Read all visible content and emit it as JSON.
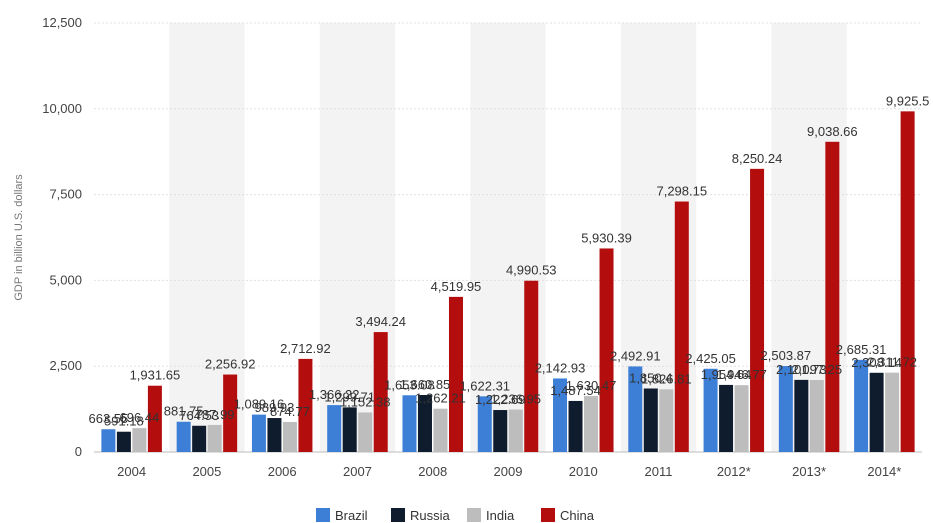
{
  "chart_data": {
    "type": "bar",
    "ylabel": "GDP in billion U.S. dollars",
    "ylim": [
      0,
      12500
    ],
    "yticks": [
      0,
      2500,
      5000,
      7500,
      10000,
      12500
    ],
    "ytick_labels": [
      "0",
      "2,500",
      "5,000",
      "7,500",
      "10,000",
      "12,500"
    ],
    "categories": [
      "2004",
      "2005",
      "2006",
      "2007",
      "2008",
      "2009",
      "2010",
      "2011",
      "2012*",
      "2013*",
      "2014*"
    ],
    "legend_position": "bottom",
    "grid": true,
    "series": [
      {
        "name": "Brazil",
        "color": "#3d7fd6",
        "values": [
          663.55,
          881.75,
          1089.16,
          1366.22,
          1653.08,
          1622.31,
          2142.93,
          2492.91,
          2425.05,
          2503.87,
          2685.31
        ],
        "labels": [
          "663.55",
          "881.75",
          "1,089.16",
          "1,366.22",
          "1,653.08",
          "1,622.31",
          "2,142.93",
          "2,492.91",
          "2,425.05",
          "2,503.87",
          "2,685.31"
        ]
      },
      {
        "name": "Russia",
        "color": "#0f1c2e",
        "values": [
          591.18,
          764.53,
          989.93,
          1299.71,
          1660.85,
          1222.69,
          1487.54,
          1850.4,
          1954.64,
          2101.73,
          2308.14
        ],
        "labels": [
          "591.18",
          "764.53",
          "989.93",
          "1,299.71",
          "1,660.85",
          "1,222.69",
          "1,487.54",
          "1,850.4",
          "1,954.64",
          "2,101.73",
          "2,308.14"
        ]
      },
      {
        "name": "India",
        "color": "#bdbdbd",
        "values": [
          696.44,
          787.99,
          874.77,
          1152.38,
          1262.21,
          1236.95,
          1630.47,
          1826.81,
          1946.77,
          2097.25,
          2311.72
        ],
        "labels": [
          "696.44",
          "787.99",
          "874.77",
          "1,152.38",
          "1,262.21",
          "1,236.95",
          "1,630.47",
          "1,826.81",
          "1,946.77",
          "2,097.25",
          "2,311.72"
        ]
      },
      {
        "name": "China",
        "color": "#b30d0d",
        "values": [
          1931.65,
          2256.92,
          2712.92,
          3494.24,
          4519.95,
          4990.53,
          5930.39,
          7298.15,
          8250.24,
          9038.66,
          9925.5
        ],
        "labels": [
          "1,931.65",
          "2,256.92",
          "2,712.92",
          "3,494.24",
          "4,519.95",
          "4,990.53",
          "5,930.39",
          "7,298.15",
          "8,250.24",
          "9,038.66",
          "9,925.5"
        ]
      }
    ]
  }
}
